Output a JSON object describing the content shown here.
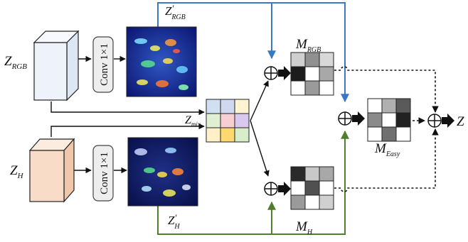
{
  "labels": {
    "z_rgb_main": "Z",
    "z_rgb_sub": "RGB",
    "z_h_main": "Z",
    "z_h_sub": "H",
    "z_rgb_prime_main": "Z",
    "z_rgb_prime_mark": "′",
    "z_rgb_prime_sub": "RGB",
    "z_h_prime_main": "Z",
    "z_h_prime_mark": "′",
    "z_h_prime_sub": "H",
    "z_mix_main": "Z",
    "z_mix_sub": "mix",
    "m_rgb_main": "M",
    "m_rgb_sub": "RGB",
    "m_h_main": "M",
    "m_h_sub": "H",
    "m_easy_main": "M",
    "m_easy_sub": "Easy",
    "output": "Z"
  },
  "conv_label": "Conv 1×1",
  "colors": {
    "blue_path": "#3a78c2",
    "green_path": "#4f7f2a",
    "black_path": "#111111",
    "rgb_cube": "#eef3fb",
    "h_cube": "#f9dcc8"
  },
  "grids": {
    "mix": [
      "#cfe0f3",
      "#cfd8ee",
      "#fff4cf",
      "#e0efd2",
      "#f7cfd3",
      "#d9c9ef",
      "#fff0c8",
      "#ffd970",
      "#d8edc9"
    ],
    "m_rgb": [
      "#cfcfcf",
      "#909090",
      "#d8d8d8",
      "#1c1c1c",
      "#ffffff",
      "#a8a8a8",
      "#ffffff",
      "#9a9a9a",
      "#ffffff"
    ],
    "m_easy": [
      "#ffffff",
      "#b0b0b0",
      "#5a5a5a",
      "#8a8a8a",
      "#ffffff",
      "#222222",
      "#ffffff",
      "#707070",
      "#ffffff"
    ],
    "m_h": [
      "#2a2a2a",
      "#c8c8c8",
      "#a8a8a8",
      "#ffffff",
      "#505050",
      "#ffffff",
      "#9a9a9a",
      "#ffffff",
      "#d0d0d0"
    ]
  }
}
